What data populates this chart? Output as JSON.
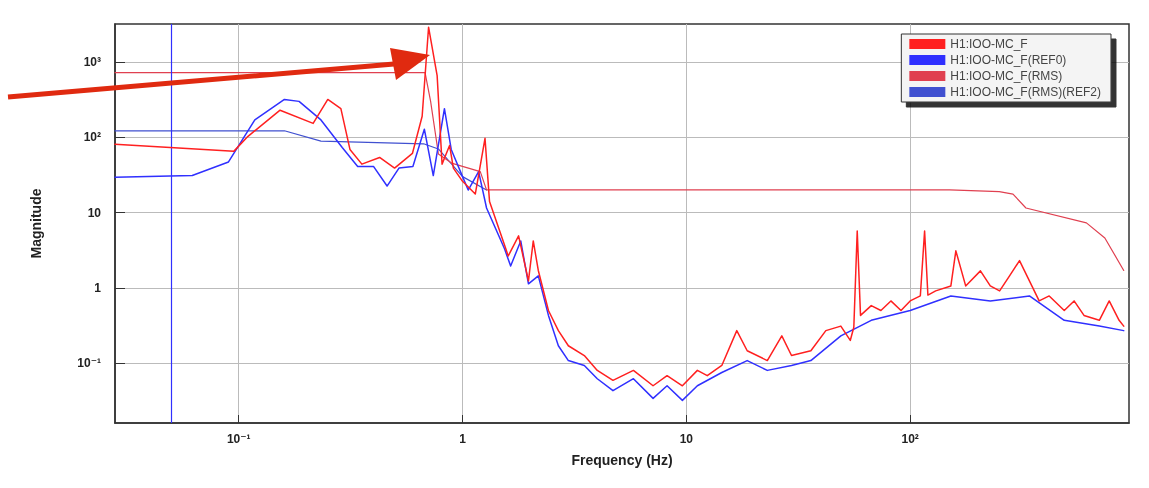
{
  "chart_data": {
    "type": "line",
    "xlabel": "Frequency (Hz)",
    "ylabel": "Magnitude",
    "log": "xy",
    "grid": true,
    "legend": "top right",
    "marker": "none",
    "line_style": "solid",
    "xlim": [
      0.028,
      950
    ],
    "ylim": [
      0.016,
      3200
    ],
    "xticks": [
      {
        "value": 0.1,
        "label": "10⁻¹"
      },
      1,
      10,
      {
        "value": 100,
        "label": "10²"
      }
    ],
    "yticks": [
      {
        "value": 0.1,
        "label": "10⁻¹"
      },
      1,
      10,
      {
        "value": 100,
        "label": "10²"
      },
      {
        "value": 1000,
        "label": "10³"
      }
    ],
    "ref_lines": [
      {
        "axis": "x",
        "value": 0.05,
        "color": "#3030ff"
      }
    ],
    "series": [
      {
        "name": "H1:IOO-MC_F",
        "color": "#ff2020",
        "x": [
          0.028,
          0.095,
          0.11,
          0.153,
          0.215,
          0.25,
          0.286,
          0.314,
          0.355,
          0.426,
          0.497,
          0.597,
          0.66,
          0.705,
          0.77,
          0.81,
          0.875,
          0.91,
          1.0,
          1.14,
          1.26,
          1.31,
          1.32,
          1.54,
          1.6,
          1.78,
          1.97,
          2.07,
          2.18,
          2.42,
          2.68,
          2.97,
          3.5,
          4.0,
          4.7,
          5.8,
          7.1,
          8.2,
          9.6,
          11.2,
          12.4,
          14.4,
          16.8,
          18.7,
          23,
          26.7,
          29.5,
          36,
          42,
          49,
          54,
          56,
          58,
          60,
          67,
          74,
          82,
          91,
          100,
          111,
          116,
          120,
          130,
          152,
          160,
          177,
          206,
          228,
          251,
          278,
          308,
          341,
          377,
          418,
          488,
          540,
          598,
          700,
          775,
          858,
          900
        ],
        "values": [
          81,
          65,
          103,
          229,
          153,
          318,
          240,
          69,
          44,
          54,
          39,
          61,
          190,
          2900,
          660,
          44,
          78,
          39,
          26,
          17.6,
          97,
          19,
          14,
          3.7,
          2.65,
          4.9,
          1.24,
          4.2,
          1.7,
          0.5,
          0.27,
          0.17,
          0.126,
          0.08,
          0.059,
          0.08,
          0.05,
          0.068,
          0.05,
          0.08,
          0.068,
          0.093,
          0.27,
          0.146,
          0.108,
          0.23,
          0.126,
          0.146,
          0.27,
          0.31,
          0.2,
          0.3,
          5.7,
          0.43,
          0.58,
          0.5,
          0.67,
          0.5,
          0.67,
          0.78,
          5.7,
          0.8,
          0.91,
          1.06,
          3.1,
          1.06,
          1.68,
          1.06,
          0.91,
          1.44,
          2.3,
          1.24,
          0.67,
          0.78,
          0.5,
          0.67,
          0.43,
          0.37,
          0.67,
          0.37,
          0.31
        ]
      },
      {
        "name": "H1:IOO-MC_F(REF0)",
        "color": "#3030ff",
        "x": [
          0.028,
          0.062,
          0.09,
          0.118,
          0.16,
          0.186,
          0.233,
          0.29,
          0.34,
          0.4,
          0.46,
          0.52,
          0.6,
          0.675,
          0.74,
          0.83,
          0.89,
          1.0,
          1.06,
          1.18,
          1.28,
          1.54,
          1.64,
          1.82,
          1.97,
          2.18,
          2.42,
          2.68,
          2.97,
          3.5,
          4.0,
          4.7,
          5.8,
          7.1,
          8.2,
          9.6,
          11.2,
          14.4,
          18.7,
          23,
          29.5,
          36,
          49,
          67,
          100,
          152,
          228,
          341,
          488,
          700,
          900
        ],
        "values": [
          29.5,
          31,
          47,
          170,
          318,
          300,
          170,
          73,
          41,
          41,
          22.5,
          39,
          41,
          128,
          31,
          240,
          69,
          30,
          19.9,
          35,
          11.5,
          3.3,
          1.95,
          4.2,
          1.13,
          1.44,
          0.43,
          0.17,
          0.108,
          0.093,
          0.062,
          0.043,
          0.062,
          0.034,
          0.05,
          0.032,
          0.05,
          0.075,
          0.108,
          0.08,
          0.093,
          0.108,
          0.23,
          0.37,
          0.5,
          0.78,
          0.67,
          0.78,
          0.37,
          0.31,
          0.27
        ]
      },
      {
        "name": "H1:IOO-MC_F(RMS)",
        "color": "#e04050",
        "x": [
          0.028,
          0.68,
          0.72,
          0.78,
          0.9,
          1.2,
          1.28,
          150,
          250,
          288,
          329,
          613,
          741,
          900
        ],
        "values": [
          725,
          725,
          300,
          60,
          45,
          35,
          20,
          20,
          19,
          17.6,
          11.5,
          7.3,
          4.6,
          1.7
        ]
      },
      {
        "name": "H1:IOO-MC_F(RMS)(REF2)",
        "color": "#4050d0",
        "x": [
          0.028,
          0.16,
          0.233,
          0.67,
          0.78,
          1.0,
          1.28
        ],
        "values": [
          122,
          122,
          89,
          82,
          70,
          30,
          20
        ]
      }
    ]
  }
}
